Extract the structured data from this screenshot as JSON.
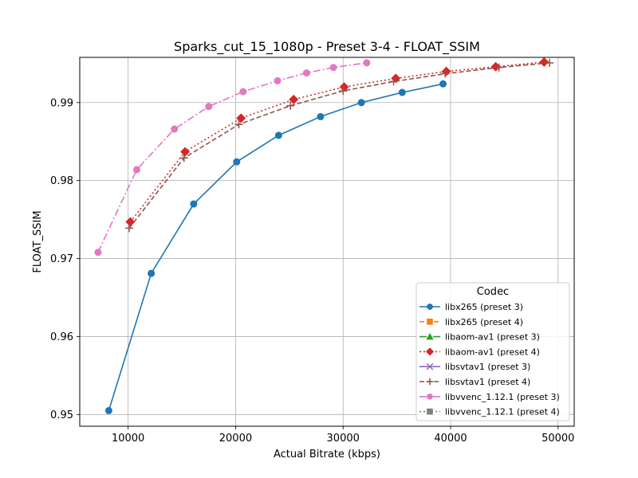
{
  "chart_data": {
    "type": "line",
    "title": "Sparks_cut_15_1080p - Preset 3-4 - FLOAT_SSIM",
    "xlabel": "Actual Bitrate (kbps)",
    "ylabel": "FLOAT_SSIM",
    "xlim": [
      5500,
      51500
    ],
    "ylim": [
      0.9485,
      0.9958
    ],
    "xticks": [
      10000,
      20000,
      30000,
      40000,
      50000
    ],
    "yticks": [
      0.95,
      0.96,
      0.97,
      0.98,
      0.99
    ],
    "xtick_labels": [
      "10000",
      "20000",
      "30000",
      "40000",
      "50000"
    ],
    "ytick_labels": [
      "0.95",
      "0.96",
      "0.97",
      "0.98",
      "0.99"
    ],
    "grid": true,
    "legend": {
      "title": "Codec",
      "position": "lower-right"
    },
    "series": [
      {
        "name": "libx265 (preset 3)",
        "color": "#1f77b4",
        "marker": "circle",
        "line": "solid",
        "x": [
          8200,
          12150,
          16100,
          20100,
          24000,
          27900,
          31700,
          35500,
          39300
        ],
        "y": [
          0.9505,
          0.9681,
          0.977,
          0.9824,
          0.9858,
          0.9882,
          0.99,
          0.9913,
          0.9924
        ]
      },
      {
        "name": "libx265 (preset 4)",
        "color": "#ff7f0e",
        "marker": "square",
        "line": "dashed",
        "x": [],
        "y": []
      },
      {
        "name": "libaom-av1 (preset 3)",
        "color": "#2ca02c",
        "marker": "triangle",
        "line": "dashdot",
        "x": [],
        "y": []
      },
      {
        "name": "libaom-av1 (preset 4)",
        "color": "#d62728",
        "marker": "diamond",
        "line": "dotted",
        "x": [
          10200,
          15300,
          20500,
          25400,
          30100,
          34900,
          39600,
          44200,
          48700
        ],
        "y": [
          0.9747,
          0.9837,
          0.988,
          0.9904,
          0.992,
          0.9931,
          0.994,
          0.9946,
          0.9952
        ]
      },
      {
        "name": "libsvtav1 (preset 3)",
        "color": "#9467bd",
        "marker": "x",
        "line": "solid",
        "x": [],
        "y": []
      },
      {
        "name": "libsvtav1 (preset 4)",
        "color": "#8c564b",
        "marker": "plus",
        "line": "dashed",
        "x": [
          10100,
          15200,
          20300,
          25100,
          30000,
          34700,
          39500,
          44500,
          49200
        ],
        "y": [
          0.9739,
          0.9829,
          0.9872,
          0.9896,
          0.9915,
          0.9927,
          0.9937,
          0.9945,
          0.9951
        ]
      },
      {
        "name": "libvvenc_1.12.1 (preset 3)",
        "color": "#e377c2",
        "marker": "circle",
        "line": "dashdot",
        "x": [
          7200,
          10800,
          14300,
          17500,
          20700,
          23900,
          26600,
          29100,
          32200
        ],
        "y": [
          0.9708,
          0.9814,
          0.9866,
          0.9895,
          0.9914,
          0.9928,
          0.9938,
          0.9945,
          0.9951
        ]
      },
      {
        "name": "libvvenc_1.12.1 (preset 4)",
        "color": "#7f7f7f",
        "marker": "square",
        "line": "dotted",
        "x": [],
        "y": []
      }
    ]
  }
}
